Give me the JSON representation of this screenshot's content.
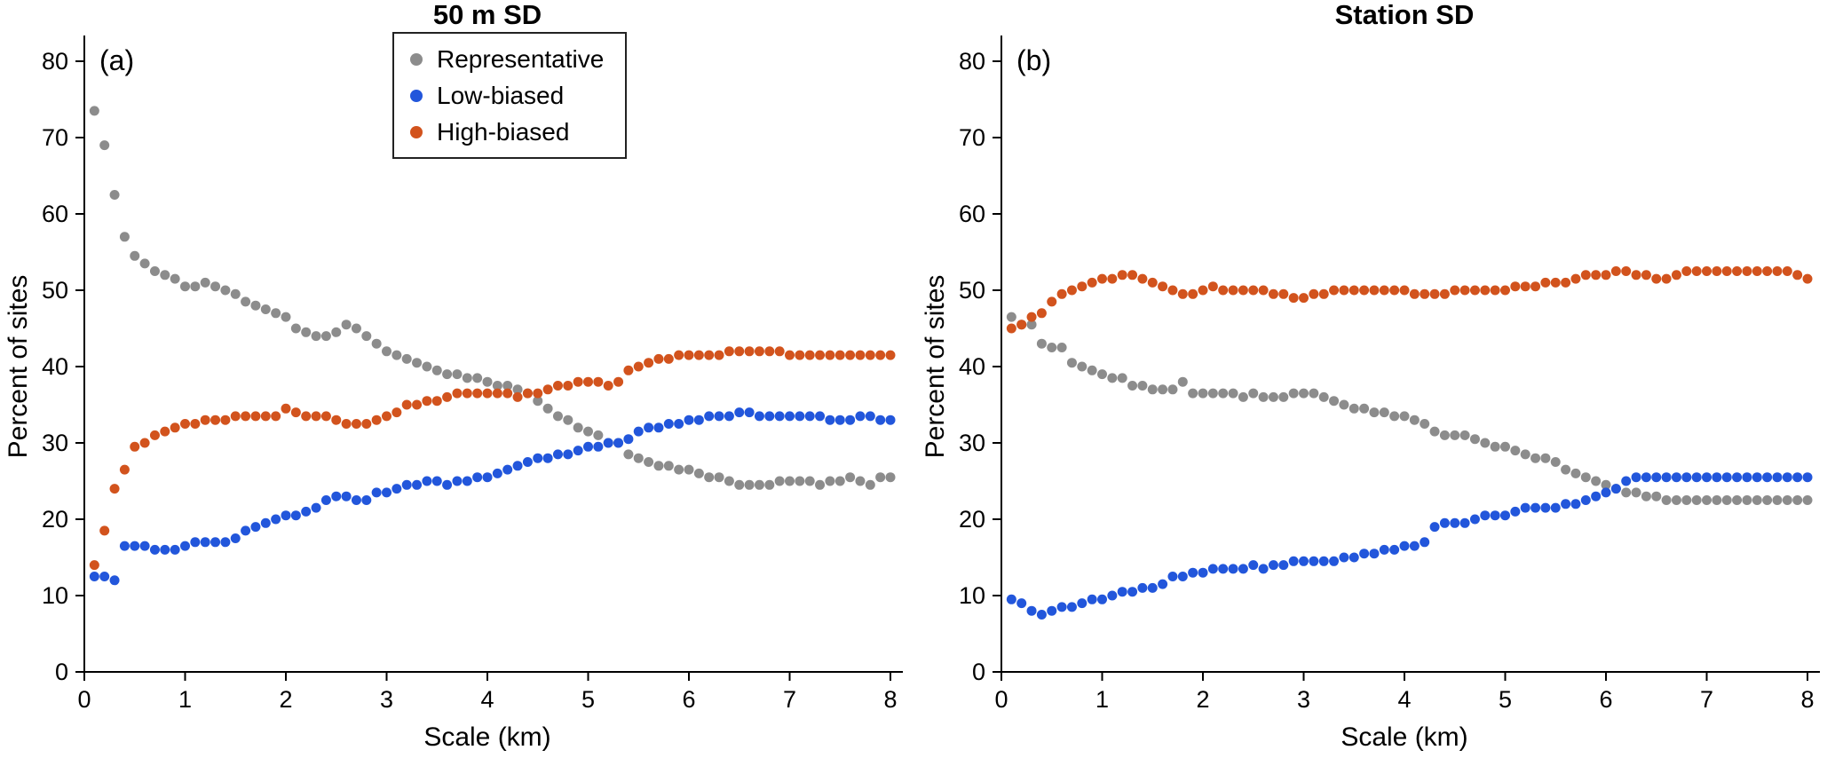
{
  "figure": {
    "background": "#ffffff"
  },
  "colors": {
    "representative": "#8C8C8C",
    "low_biased": "#2256DB",
    "high_biased": "#D2531D",
    "axis": "#000000"
  },
  "chart_data": [
    {
      "type": "scatter",
      "panel_label": "(a)",
      "title": "50 m SD",
      "xlabel": "Scale (km)",
      "ylabel": "Percent of sites",
      "xlim": [
        0,
        8
      ],
      "ylim": [
        0,
        80
      ],
      "xticks": [
        0,
        1,
        2,
        3,
        4,
        5,
        6,
        7,
        8
      ],
      "yticks": [
        0,
        10,
        20,
        30,
        40,
        50,
        60,
        70,
        80
      ],
      "grid": false,
      "legend_position": "upper center inside plot",
      "x": {
        "start": 0.1,
        "step": 0.1,
        "count": 80
      },
      "series": [
        {
          "name": "Representative",
          "color": "#8C8C8C",
          "values": [
            73.5,
            69,
            62.5,
            57,
            54.5,
            53.5,
            52.5,
            52,
            51.5,
            50.5,
            50.5,
            51,
            50.5,
            50,
            49.5,
            48.5,
            48,
            47.5,
            47,
            46.5,
            45,
            44.5,
            44,
            44,
            44.5,
            45.5,
            45,
            44,
            43,
            42,
            41.5,
            41,
            40.5,
            40,
            39.5,
            39,
            39,
            38.5,
            38.5,
            38,
            37.5,
            37.5,
            37,
            36.5,
            35.5,
            34.5,
            33.5,
            33,
            32,
            31.5,
            31,
            30,
            30,
            28.5,
            28,
            27.5,
            27,
            27,
            26.5,
            26.5,
            26,
            25.5,
            25.5,
            25,
            24.5,
            24.5,
            24.5,
            24.5,
            25,
            25,
            25,
            25,
            24.5,
            25,
            25,
            25.5,
            25,
            24.5,
            25.5,
            25.5
          ]
        },
        {
          "name": "Low-biased",
          "color": "#2256DB",
          "values": [
            12.5,
            12.5,
            12,
            16.5,
            16.5,
            16.5,
            16,
            16,
            16,
            16.5,
            17,
            17,
            17,
            17,
            17.5,
            18.5,
            19,
            19.5,
            20,
            20.5,
            20.5,
            21,
            21.5,
            22.5,
            23,
            23,
            22.5,
            22.5,
            23.5,
            23.5,
            24,
            24.5,
            24.5,
            25,
            25,
            24.5,
            25,
            25,
            25.5,
            25.5,
            26,
            26.5,
            27,
            27.5,
            28,
            28,
            28.5,
            28.5,
            29,
            29.5,
            29.5,
            30,
            30,
            30.5,
            31.5,
            32,
            32,
            32.5,
            32.5,
            33,
            33,
            33.5,
            33.5,
            33.5,
            34,
            34,
            33.5,
            33.5,
            33.5,
            33.5,
            33.5,
            33.5,
            33.5,
            33,
            33,
            33,
            33.5,
            33.5,
            33,
            33
          ]
        },
        {
          "name": "High-biased",
          "color": "#D2531D",
          "values": [
            14,
            18.5,
            24,
            26.5,
            29.5,
            30,
            31,
            31.5,
            32,
            32.5,
            32.5,
            33,
            33,
            33,
            33.5,
            33.5,
            33.5,
            33.5,
            33.5,
            34.5,
            34,
            33.5,
            33.5,
            33.5,
            33,
            32.5,
            32.5,
            32.5,
            33,
            33.5,
            34,
            35,
            35,
            35.5,
            35.5,
            36,
            36.5,
            36.5,
            36.5,
            36.5,
            36.5,
            36.5,
            36,
            36.5,
            36.5,
            37,
            37.5,
            37.5,
            38,
            38,
            38,
            37.5,
            38,
            39.5,
            40,
            40.5,
            41,
            41,
            41.5,
            41.5,
            41.5,
            41.5,
            41.5,
            42,
            42,
            42,
            42,
            42,
            42,
            41.5,
            41.5,
            41.5,
            41.5,
            41.5,
            41.5,
            41.5,
            41.5,
            41.5,
            41.5,
            41.5
          ]
        }
      ]
    },
    {
      "type": "scatter",
      "panel_label": "(b)",
      "title": "Station SD",
      "xlabel": "Scale (km)",
      "ylabel": "Percent of sites",
      "xlim": [
        0,
        8
      ],
      "ylim": [
        0,
        80
      ],
      "xticks": [
        0,
        1,
        2,
        3,
        4,
        5,
        6,
        7,
        8
      ],
      "yticks": [
        0,
        10,
        20,
        30,
        40,
        50,
        60,
        70,
        80
      ],
      "grid": false,
      "legend_position": "none",
      "x": {
        "start": 0.1,
        "step": 0.1,
        "count": 80
      },
      "series": [
        {
          "name": "Representative",
          "color": "#8C8C8C",
          "values": [
            46.5,
            45.5,
            45.5,
            43,
            42.5,
            42.5,
            40.5,
            40,
            39.5,
            39,
            38.5,
            38.5,
            37.5,
            37.5,
            37,
            37,
            37,
            38,
            36.5,
            36.5,
            36.5,
            36.5,
            36.5,
            36,
            36.5,
            36,
            36,
            36,
            36.5,
            36.5,
            36.5,
            36,
            35.5,
            35,
            34.5,
            34.5,
            34,
            34,
            33.5,
            33.5,
            33,
            32.5,
            31.5,
            31,
            31,
            31,
            30.5,
            30,
            29.5,
            29.5,
            29,
            28.5,
            28,
            28,
            27.5,
            26.5,
            26,
            25.5,
            25,
            24.5,
            24,
            23.5,
            23.5,
            23,
            23,
            22.5,
            22.5,
            22.5,
            22.5,
            22.5,
            22.5,
            22.5,
            22.5,
            22.5,
            22.5,
            22.5,
            22.5,
            22.5,
            22.5,
            22.5
          ]
        },
        {
          "name": "Low-biased",
          "color": "#2256DB",
          "values": [
            9.5,
            9,
            8,
            7.5,
            8,
            8.5,
            8.5,
            9,
            9.5,
            9.5,
            10,
            10.5,
            10.5,
            11,
            11,
            11.5,
            12.5,
            12.5,
            13,
            13,
            13.5,
            13.5,
            13.5,
            13.5,
            14,
            13.5,
            14,
            14,
            14.5,
            14.5,
            14.5,
            14.5,
            14.5,
            15,
            15,
            15.5,
            15.5,
            16,
            16,
            16.5,
            16.5,
            17,
            19,
            19.5,
            19.5,
            19.5,
            20,
            20.5,
            20.5,
            20.5,
            21,
            21.5,
            21.5,
            21.5,
            21.5,
            22,
            22,
            22.5,
            23,
            23.5,
            24,
            25,
            25.5,
            25.5,
            25.5,
            25.5,
            25.5,
            25.5,
            25.5,
            25.5,
            25.5,
            25.5,
            25.5,
            25.5,
            25.5,
            25.5,
            25.5,
            25.5,
            25.5,
            25.5
          ]
        },
        {
          "name": "High-biased",
          "color": "#D2531D",
          "values": [
            45,
            45.5,
            46.5,
            47,
            48.5,
            49.5,
            50,
            50.5,
            51,
            51.5,
            51.5,
            52,
            52,
            51.5,
            51,
            50.5,
            50,
            49.5,
            49.5,
            50,
            50.5,
            50,
            50,
            50,
            50,
            50,
            49.5,
            49.5,
            49,
            49,
            49.5,
            49.5,
            50,
            50,
            50,
            50,
            50,
            50,
            50,
            50,
            49.5,
            49.5,
            49.5,
            49.5,
            50,
            50,
            50,
            50,
            50,
            50,
            50.5,
            50.5,
            50.5,
            51,
            51,
            51,
            51.5,
            52,
            52,
            52,
            52.5,
            52.5,
            52,
            52,
            51.5,
            51.5,
            52,
            52.5,
            52.5,
            52.5,
            52.5,
            52.5,
            52.5,
            52.5,
            52.5,
            52.5,
            52.5,
            52.5,
            52,
            51.5
          ]
        }
      ]
    }
  ]
}
